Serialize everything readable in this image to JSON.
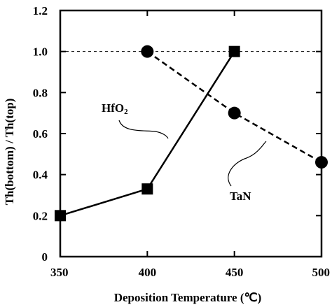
{
  "chart_data": {
    "type": "line",
    "title": "",
    "xlabel": "Deposition Temperature",
    "xlabel_unit": "℃",
    "ylabel": "Th(bottom) / Th(top)",
    "xlim": [
      350,
      500
    ],
    "ylim": [
      0,
      1.2
    ],
    "xticks": [
      350,
      400,
      450,
      500
    ],
    "xtick_labels": [
      "350",
      "400",
      "450",
      "500"
    ],
    "yticks": [
      0,
      0.2,
      0.4,
      0.6,
      0.8,
      1.0,
      1.2
    ],
    "ytick_labels": [
      "0",
      "0.2",
      "0.4",
      "0.6",
      "0.8",
      "1.0",
      "1.2"
    ],
    "grid": false,
    "reference_line": {
      "y": 1.0,
      "style": "dashed"
    },
    "series": [
      {
        "name": "HfO",
        "name_subscript": "2",
        "marker": "square",
        "line_style": "solid",
        "x": [
          350,
          400,
          450
        ],
        "y": [
          0.2,
          0.33,
          1.0
        ]
      },
      {
        "name": "TaN",
        "marker": "circle",
        "line_style": "dashed",
        "x": [
          400,
          450,
          500
        ],
        "y": [
          1.0,
          0.7,
          0.46
        ]
      }
    ]
  }
}
